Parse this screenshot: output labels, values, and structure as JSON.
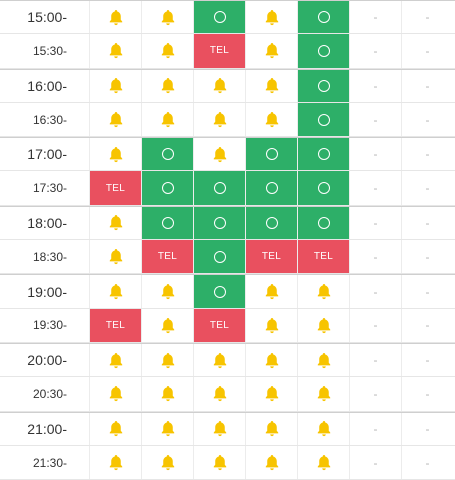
{
  "colors": {
    "bell": "#f7c400",
    "available": "#2daf68",
    "tel": "#e9505f",
    "dash": "#b5b5b5"
  },
  "legend": {
    "bell": "bell-icon",
    "ok": "circle-icon",
    "tel": "TEL",
    "dash": "-"
  },
  "rows": [
    {
      "time": "15:00-",
      "cells": [
        "bell",
        "bell",
        "ok",
        "bell",
        "ok",
        "dash",
        "dash"
      ]
    },
    {
      "time": "15:30-",
      "cells": [
        "bell",
        "bell",
        "tel",
        "bell",
        "ok",
        "dash",
        "dash"
      ]
    },
    {
      "time": "16:00-",
      "cells": [
        "bell",
        "bell",
        "bell",
        "bell",
        "ok",
        "dash",
        "dash"
      ]
    },
    {
      "time": "16:30-",
      "cells": [
        "bell",
        "bell",
        "bell",
        "bell",
        "ok",
        "dash",
        "dash"
      ]
    },
    {
      "time": "17:00-",
      "cells": [
        "bell",
        "ok",
        "bell",
        "ok",
        "ok",
        "dash",
        "dash"
      ]
    },
    {
      "time": "17:30-",
      "cells": [
        "tel",
        "ok",
        "ok",
        "ok",
        "ok",
        "dash",
        "dash"
      ]
    },
    {
      "time": "18:00-",
      "cells": [
        "bell",
        "ok",
        "ok",
        "ok",
        "ok",
        "dash",
        "dash"
      ]
    },
    {
      "time": "18:30-",
      "cells": [
        "bell",
        "tel",
        "ok",
        "tel",
        "tel",
        "dash",
        "dash"
      ]
    },
    {
      "time": "19:00-",
      "cells": [
        "bell",
        "bell",
        "ok",
        "bell",
        "bell",
        "dash",
        "dash"
      ]
    },
    {
      "time": "19:30-",
      "cells": [
        "tel",
        "bell",
        "tel",
        "bell",
        "bell",
        "dash",
        "dash"
      ]
    },
    {
      "time": "20:00-",
      "cells": [
        "bell",
        "bell",
        "bell",
        "bell",
        "bell",
        "dash",
        "dash"
      ]
    },
    {
      "time": "20:30-",
      "cells": [
        "bell",
        "bell",
        "bell",
        "bell",
        "bell",
        "dash",
        "dash"
      ]
    },
    {
      "time": "21:00-",
      "cells": [
        "bell",
        "bell",
        "bell",
        "bell",
        "bell",
        "dash",
        "dash"
      ]
    },
    {
      "time": "21:30-",
      "cells": [
        "bell",
        "bell",
        "bell",
        "bell",
        "bell",
        "dash",
        "dash"
      ]
    }
  ]
}
